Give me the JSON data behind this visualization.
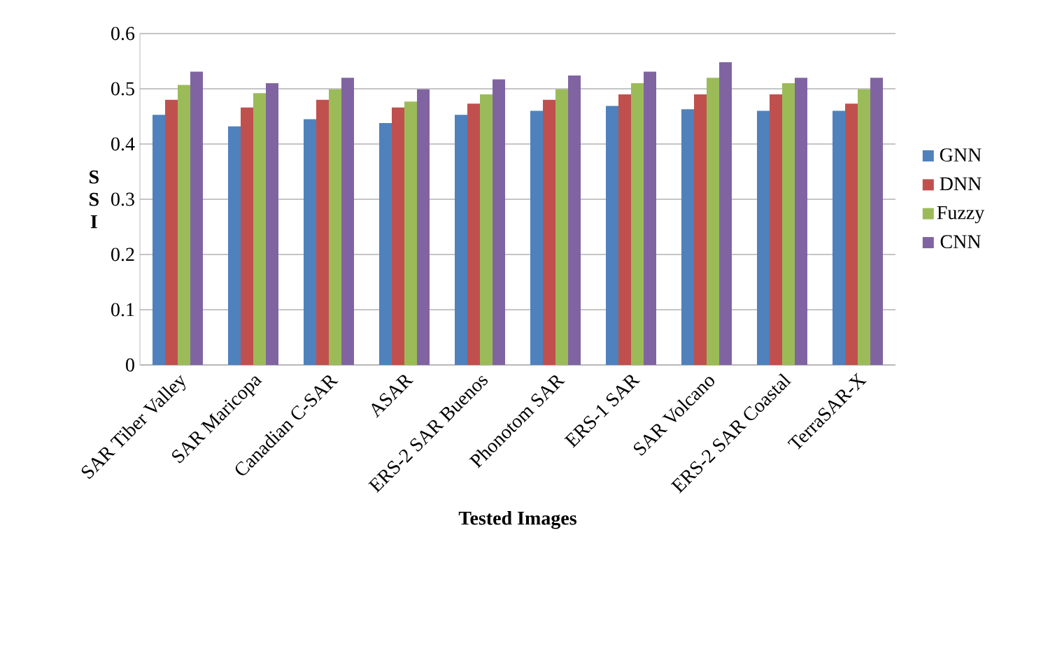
{
  "chart_data": {
    "type": "bar",
    "xlabel": "Tested Images",
    "ylabel": "S S I",
    "categories": [
      "SAR Tiber Valley",
      "SAR Maricopa",
      "Canadian C-SAR",
      "ASAR",
      "ERS-2 SAR Buenos",
      "Phonotom SAR",
      "ERS-1 SAR",
      "SAR Volcano",
      "ERS-2 SAR Coastal",
      "TerraSAR-X"
    ],
    "series": [
      {
        "name": "GNN",
        "color": "#4f81bd",
        "values": [
          0.453,
          0.432,
          0.445,
          0.438,
          0.453,
          0.46,
          0.469,
          0.463,
          0.46,
          0.46
        ]
      },
      {
        "name": "DNN",
        "color": "#c0504d",
        "values": [
          0.48,
          0.466,
          0.48,
          0.466,
          0.473,
          0.48,
          0.49,
          0.49,
          0.49,
          0.473
        ]
      },
      {
        "name": "Fuzzy",
        "color": "#9bbb59",
        "values": [
          0.507,
          0.492,
          0.499,
          0.477,
          0.49,
          0.499,
          0.51,
          0.52,
          0.51,
          0.499
        ]
      },
      {
        "name": "CNN",
        "color": "#8064a2",
        "values": [
          0.531,
          0.51,
          0.52,
          0.499,
          0.517,
          0.524,
          0.531,
          0.548,
          0.52,
          0.52
        ]
      }
    ],
    "ylim": [
      0,
      0.6
    ],
    "yticks": [
      0,
      0.1,
      0.2,
      0.3,
      0.4,
      0.5,
      0.6
    ],
    "grid": "y",
    "legend": "right"
  }
}
